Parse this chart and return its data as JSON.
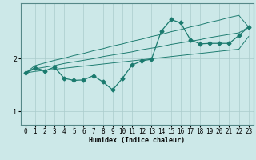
{
  "xlabel": "Humidex (Indice chaleur)",
  "bg_color": "#cce8e8",
  "plot_bg_color": "#cce8e8",
  "grid_color": "#aacccc",
  "line_color": "#1a7a6e",
  "x_data": [
    0,
    1,
    2,
    3,
    4,
    5,
    6,
    7,
    8,
    9,
    10,
    11,
    12,
    13,
    14,
    15,
    16,
    17,
    18,
    19,
    20,
    21,
    22,
    23
  ],
  "y_main": [
    1.73,
    1.83,
    1.77,
    1.84,
    1.63,
    1.59,
    1.6,
    1.68,
    1.56,
    1.41,
    1.63,
    1.88,
    1.96,
    1.99,
    2.52,
    2.74,
    2.68,
    2.36,
    2.28,
    2.29,
    2.29,
    2.29,
    2.44,
    2.6
  ],
  "y_trend1": [
    1.73,
    1.87,
    1.92,
    1.97,
    2.01,
    2.06,
    2.1,
    2.15,
    2.19,
    2.24,
    2.28,
    2.33,
    2.37,
    2.42,
    2.46,
    2.51,
    2.55,
    2.6,
    2.64,
    2.69,
    2.73,
    2.78,
    2.82,
    2.6
  ],
  "y_trend2": [
    1.73,
    1.81,
    1.84,
    1.87,
    1.91,
    1.94,
    1.97,
    2.0,
    2.04,
    2.07,
    2.1,
    2.13,
    2.17,
    2.2,
    2.23,
    2.27,
    2.3,
    2.33,
    2.36,
    2.4,
    2.43,
    2.46,
    2.49,
    2.6
  ],
  "y_trend3": [
    1.73,
    1.76,
    1.78,
    1.8,
    1.82,
    1.84,
    1.86,
    1.88,
    1.9,
    1.92,
    1.94,
    1.96,
    1.98,
    2.0,
    2.02,
    2.04,
    2.06,
    2.08,
    2.1,
    2.12,
    2.14,
    2.16,
    2.18,
    2.42
  ],
  "xlim": [
    -0.5,
    23.5
  ],
  "ylim": [
    0.75,
    3.05
  ],
  "yticks": [
    1,
    2
  ],
  "xticks": [
    0,
    1,
    2,
    3,
    4,
    5,
    6,
    7,
    8,
    9,
    10,
    11,
    12,
    13,
    14,
    15,
    16,
    17,
    18,
    19,
    20,
    21,
    22,
    23
  ],
  "markersize": 2.5,
  "linewidth": 0.9,
  "tick_fontsize": 5.5,
  "xlabel_fontsize": 6.0
}
